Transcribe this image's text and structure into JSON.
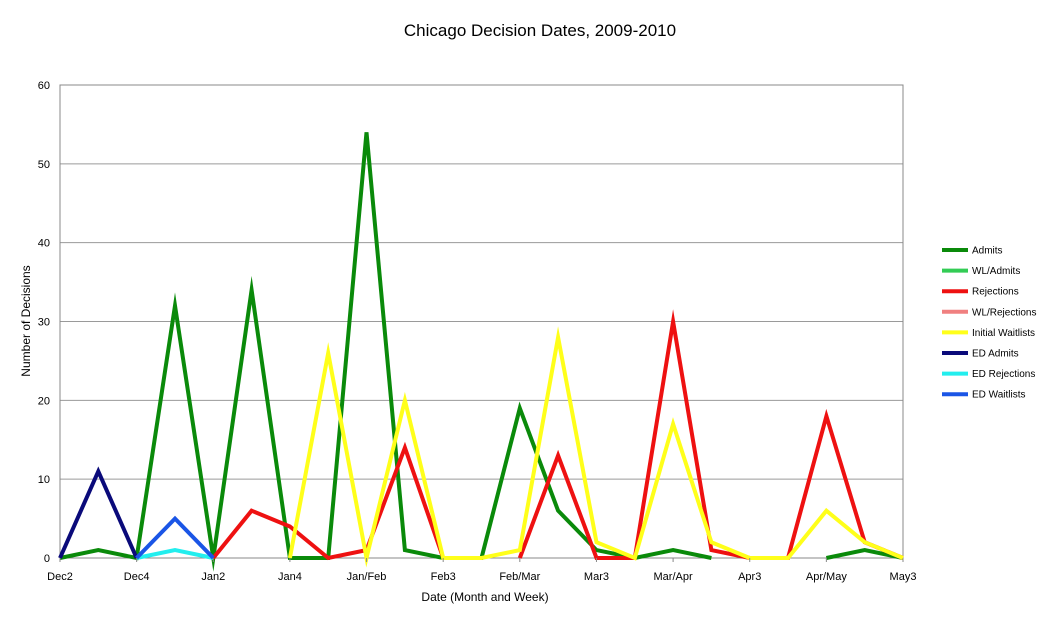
{
  "chart_data": {
    "type": "line",
    "title": "Chicago Decision Dates, 2009-2010",
    "xlabel": "Date (Month and Week)",
    "ylabel": "Number of Decisions",
    "ylim": [
      0,
      60
    ],
    "yticks": [
      0,
      10,
      20,
      30,
      40,
      50,
      60
    ],
    "grid": true,
    "legend_position": "right",
    "x_tick_labels": [
      "Dec2",
      "Dec4",
      "Jan2",
      "Jan4",
      "Jan/Feb",
      "Feb3",
      "Feb/Mar",
      "Mar3",
      "Mar/Apr",
      "Apr3",
      "Apr/May",
      "May3"
    ],
    "x_tick_indices": [
      0,
      2,
      4,
      6,
      8,
      10,
      12,
      14,
      16,
      18,
      20,
      22
    ],
    "series": [
      {
        "name": "Admits",
        "color": "#0a8a0a",
        "values": [
          0,
          1,
          0,
          32,
          0,
          34,
          0,
          0,
          54,
          1,
          0,
          0,
          19,
          6,
          1,
          0,
          1,
          0,
          null,
          null,
          0,
          1,
          0
        ]
      },
      {
        "name": "WL/Admits",
        "color": "#33cc55",
        "values": []
      },
      {
        "name": "Rejections",
        "color": "#ee1111",
        "values": [
          null,
          null,
          null,
          null,
          0,
          6,
          4,
          0,
          1,
          14,
          0,
          null,
          0,
          13,
          0,
          0,
          30,
          1,
          0,
          0,
          18,
          2,
          0
        ]
      },
      {
        "name": "WL/Rejections",
        "color": "#f08080",
        "values": []
      },
      {
        "name": "Initial Waitlists",
        "color": "#ffff1a",
        "values": [
          null,
          null,
          null,
          null,
          null,
          null,
          0,
          26,
          0,
          20,
          0,
          0,
          1,
          28,
          2,
          0,
          17,
          2,
          0,
          0,
          6,
          2,
          0
        ]
      },
      {
        "name": "ED Admits",
        "color": "#0a0a7a",
        "values": [
          0,
          11,
          0
        ]
      },
      {
        "name": "ED Rejections",
        "color": "#22eeee",
        "values": [
          null,
          null,
          0,
          1,
          0
        ]
      },
      {
        "name": "ED Waitlists",
        "color": "#1a55e6",
        "values": [
          null,
          null,
          0,
          5,
          0
        ]
      }
    ]
  }
}
